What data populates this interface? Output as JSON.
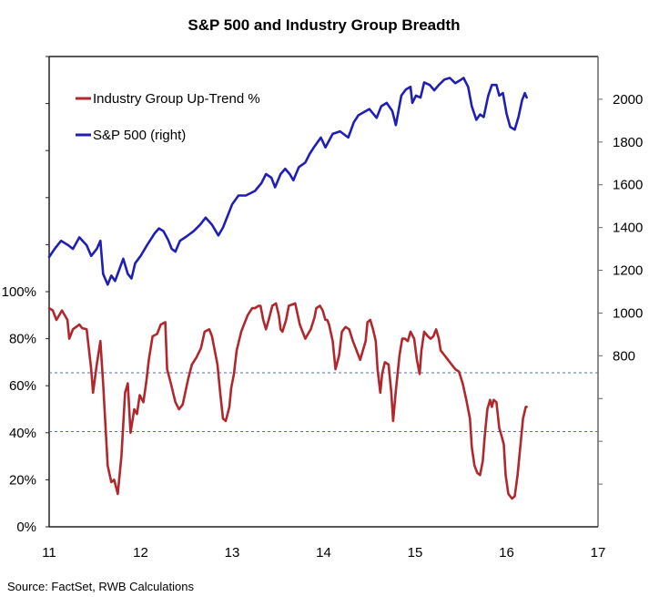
{
  "chart_data": {
    "type": "line",
    "title": "S&P 500 and Industry Group Breadth",
    "source": "Source: FactSet, RWB Calculations",
    "xlabel": "",
    "x_ticks": [
      "11",
      "12",
      "13",
      "14",
      "15",
      "16",
      "17"
    ],
    "xlim": [
      11,
      17
    ],
    "left_axis": {
      "label": "",
      "ylim": [
        0,
        200
      ],
      "tick_values": [
        0,
        20,
        40,
        60,
        80,
        100,
        120,
        140,
        160,
        180,
        200
      ],
      "tick_labels": [
        "0%",
        "20%",
        "40%",
        "60%",
        "80%",
        "100%",
        "",
        "",
        "",
        "",
        ""
      ]
    },
    "right_axis": {
      "label": "",
      "ylim": [
        0,
        2200
      ],
      "tick_values": [
        200,
        400,
        600,
        800,
        1000,
        1200,
        1400,
        1600,
        1800,
        2000
      ],
      "tick_labels": [
        "",
        "",
        "",
        "800",
        "1000",
        "1200",
        "1400",
        "1600",
        "1800",
        "2000"
      ]
    },
    "reference_lines": [
      {
        "axis": "left",
        "value": 65.5,
        "style": "dotted",
        "color": "#4f6fa8"
      },
      {
        "axis": "left",
        "value": 40.5,
        "style": "dotted",
        "color": "#4f6fa8"
      }
    ],
    "legend": {
      "position": "top-left",
      "entries": [
        {
          "label": "Industry Group Up-Trend %",
          "color": "#b0282e"
        },
        {
          "label": "S&P 500 (right)",
          "color": "#1f1fb4"
        }
      ]
    },
    "grid": false,
    "series": [
      {
        "name": "Industry Group Up-Trend %",
        "axis": "left",
        "color": "#b0282e",
        "x": [
          11.0,
          11.04,
          11.08,
          11.14,
          11.2,
          11.22,
          11.26,
          11.33,
          11.36,
          11.41,
          11.46,
          11.48,
          11.52,
          11.56,
          11.59,
          11.64,
          11.68,
          11.71,
          11.75,
          11.79,
          11.83,
          11.86,
          11.89,
          11.93,
          11.96,
          11.99,
          12.03,
          12.06,
          12.09,
          12.13,
          12.18,
          12.22,
          12.27,
          12.29,
          12.33,
          12.38,
          12.42,
          12.46,
          12.52,
          12.56,
          12.61,
          12.66,
          12.7,
          12.75,
          12.78,
          12.81,
          12.84,
          12.87,
          12.9,
          12.93,
          12.97,
          12.99,
          13.02,
          13.05,
          13.1,
          13.17,
          13.22,
          13.25,
          13.29,
          13.31,
          13.34,
          13.37,
          13.4,
          13.44,
          13.48,
          13.51,
          13.53,
          13.55,
          13.59,
          13.62,
          13.69,
          13.74,
          13.8,
          13.83,
          13.86,
          13.9,
          13.92,
          13.96,
          13.99,
          14.02,
          14.04,
          14.06,
          14.1,
          14.13,
          14.17,
          14.2,
          14.24,
          14.28,
          14.32,
          14.36,
          14.4,
          14.43,
          14.46,
          14.48,
          14.51,
          14.54,
          14.57,
          14.59,
          14.62,
          14.64,
          14.67,
          14.71,
          14.74,
          14.76,
          14.79,
          14.83,
          14.86,
          14.89,
          14.92,
          14.95,
          14.99,
          15.02,
          15.05,
          15.07,
          15.1,
          15.14,
          15.17,
          15.2,
          15.23,
          15.26,
          15.28,
          15.32,
          15.36,
          15.4,
          15.44,
          15.48,
          15.52,
          15.56,
          15.6,
          15.62,
          15.65,
          15.68,
          15.71,
          15.74,
          15.76,
          15.79,
          15.82,
          15.84,
          15.86,
          15.89,
          15.92,
          15.95,
          15.97,
          15.99,
          16.02,
          16.06,
          16.09,
          16.12,
          16.15,
          16.18,
          16.21,
          16.22
        ],
        "values": [
          93,
          92,
          88,
          92,
          88,
          80,
          84,
          86,
          84.5,
          84,
          67,
          57,
          69,
          79,
          61,
          26,
          19,
          20,
          14,
          30,
          57,
          61,
          40,
          50,
          48,
          56,
          53,
          61,
          71,
          81,
          82,
          86,
          87,
          67,
          61,
          53,
          50,
          52,
          63,
          69,
          72,
          76,
          83,
          84,
          81,
          75,
          69,
          57,
          46,
          45,
          51,
          59,
          65,
          75,
          83,
          90,
          93,
          93,
          94,
          94,
          88,
          84,
          88,
          94,
          95,
          90,
          84,
          83,
          88,
          94,
          95,
          86,
          80,
          82,
          84,
          89,
          93,
          94,
          92,
          88,
          88,
          86,
          79,
          67,
          73,
          83,
          85,
          84,
          79,
          75,
          71,
          75,
          79,
          87,
          88,
          84,
          79,
          67,
          57,
          65,
          70,
          69,
          57,
          45,
          58,
          73,
          80,
          80,
          79,
          83,
          80,
          71,
          65,
          75,
          83,
          81,
          80,
          81,
          84,
          80,
          75,
          73,
          71,
          69,
          67,
          66,
          61,
          54,
          46,
          34,
          26,
          23,
          22,
          28,
          38,
          50,
          54,
          51,
          54,
          53,
          42,
          38,
          35,
          22,
          14,
          12,
          13,
          22,
          34,
          46,
          51,
          51
        ]
      },
      {
        "name": "S&P 500 (right)",
        "axis": "right",
        "color": "#1f1fb4",
        "x": [
          11.0,
          11.06,
          11.13,
          11.21,
          11.26,
          11.33,
          11.41,
          11.46,
          11.52,
          11.56,
          11.59,
          11.64,
          11.68,
          11.72,
          11.76,
          11.81,
          11.86,
          11.9,
          11.94,
          12.0,
          12.07,
          12.15,
          12.2,
          12.25,
          12.3,
          12.34,
          12.38,
          12.43,
          12.5,
          12.58,
          12.65,
          12.71,
          12.78,
          12.85,
          12.9,
          13.0,
          13.07,
          13.15,
          13.25,
          13.32,
          13.37,
          13.43,
          13.47,
          13.53,
          13.58,
          13.63,
          13.67,
          13.73,
          13.8,
          13.85,
          13.9,
          13.97,
          14.02,
          14.1,
          14.18,
          14.27,
          14.33,
          14.38,
          14.45,
          14.5,
          14.58,
          14.63,
          14.69,
          14.75,
          14.79,
          14.85,
          14.9,
          14.95,
          14.97,
          15.01,
          15.06,
          15.1,
          15.16,
          15.21,
          15.26,
          15.32,
          15.38,
          15.44,
          15.49,
          15.53,
          15.58,
          15.62,
          15.67,
          15.71,
          15.75,
          15.8,
          15.84,
          15.89,
          15.92,
          15.96,
          16.0,
          16.04,
          16.09,
          16.13,
          16.17,
          16.2,
          16.22
        ],
        "values": [
          1262,
          1300,
          1338,
          1317,
          1300,
          1354,
          1317,
          1267,
          1300,
          1338,
          1183,
          1133,
          1175,
          1150,
          1196,
          1254,
          1183,
          1162,
          1233,
          1267,
          1317,
          1371,
          1396,
          1383,
          1342,
          1300,
          1287,
          1338,
          1358,
          1383,
          1413,
          1446,
          1413,
          1363,
          1400,
          1508,
          1550,
          1550,
          1571,
          1608,
          1650,
          1633,
          1588,
          1650,
          1675,
          1650,
          1621,
          1683,
          1704,
          1746,
          1779,
          1821,
          1775,
          1838,
          1850,
          1821,
          1892,
          1925,
          1942,
          1954,
          1913,
          1967,
          1983,
          1946,
          1879,
          2017,
          2046,
          2058,
          1983,
          2017,
          2008,
          2079,
          2067,
          2042,
          2067,
          2092,
          2100,
          2075,
          2088,
          2100,
          2058,
          1967,
          1904,
          1929,
          1917,
          2017,
          2067,
          2067,
          2017,
          2029,
          1933,
          1871,
          1858,
          1917,
          1996,
          2029,
          2008
        ]
      }
    ]
  }
}
